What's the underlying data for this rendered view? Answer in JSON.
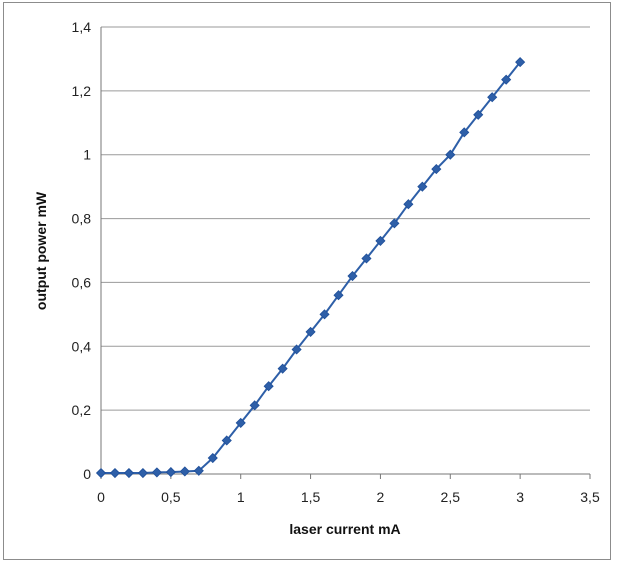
{
  "chart_data": {
    "type": "line",
    "title": "",
    "xlabel": "laser current mA",
    "ylabel": "output power mW",
    "xlim": [
      0,
      3.5
    ],
    "ylim": [
      0,
      1.4
    ],
    "x_ticks": [
      0,
      0.5,
      1,
      1.5,
      2,
      2.5,
      3,
      3.5
    ],
    "y_ticks": [
      0,
      0.2,
      0.4,
      0.6,
      0.8,
      1,
      1.2,
      1.4
    ],
    "x_tick_labels": [
      "0",
      "0,5",
      "1",
      "1,5",
      "2",
      "2,5",
      "3",
      "3,5"
    ],
    "y_tick_labels": [
      "0",
      "0,2",
      "0,4",
      "0,6",
      "0,8",
      "1",
      "1,2",
      "1,4"
    ],
    "grid": "horizontal",
    "legend": "none",
    "series": [
      {
        "color": "#2e5fa8",
        "marker": "diamond",
        "points": [
          {
            "x": 0.0,
            "y": 0.003
          },
          {
            "x": 0.1,
            "y": 0.003
          },
          {
            "x": 0.2,
            "y": 0.003
          },
          {
            "x": 0.3,
            "y": 0.003
          },
          {
            "x": 0.4,
            "y": 0.005
          },
          {
            "x": 0.5,
            "y": 0.006
          },
          {
            "x": 0.6,
            "y": 0.008
          },
          {
            "x": 0.7,
            "y": 0.01
          },
          {
            "x": 0.8,
            "y": 0.05
          },
          {
            "x": 0.9,
            "y": 0.105
          },
          {
            "x": 1.0,
            "y": 0.16
          },
          {
            "x": 1.1,
            "y": 0.215
          },
          {
            "x": 1.2,
            "y": 0.275
          },
          {
            "x": 1.3,
            "y": 0.33
          },
          {
            "x": 1.4,
            "y": 0.39
          },
          {
            "x": 1.5,
            "y": 0.445
          },
          {
            "x": 1.6,
            "y": 0.5
          },
          {
            "x": 1.7,
            "y": 0.56
          },
          {
            "x": 1.8,
            "y": 0.62
          },
          {
            "x": 1.9,
            "y": 0.675
          },
          {
            "x": 2.0,
            "y": 0.73
          },
          {
            "x": 2.1,
            "y": 0.785
          },
          {
            "x": 2.2,
            "y": 0.845
          },
          {
            "x": 2.3,
            "y": 0.9
          },
          {
            "x": 2.4,
            "y": 0.955
          },
          {
            "x": 2.5,
            "y": 1.0
          },
          {
            "x": 2.6,
            "y": 1.07
          },
          {
            "x": 2.7,
            "y": 1.125
          },
          {
            "x": 2.8,
            "y": 1.18
          },
          {
            "x": 2.9,
            "y": 1.235
          },
          {
            "x": 3.0,
            "y": 1.29
          }
        ]
      }
    ]
  }
}
